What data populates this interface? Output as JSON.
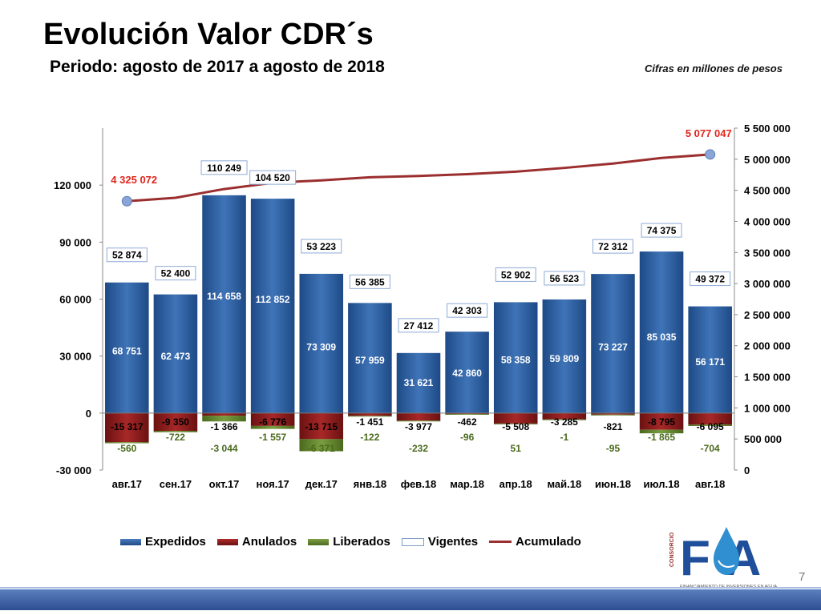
{
  "header": {
    "title": "Evolución Valor CDR´s",
    "subtitle": "Periodo:  agosto de 2017 a agosto de 2018",
    "note": "Cifras en millones de pesos"
  },
  "legend": {
    "expedidos": "Expedidos",
    "anulados": "Anulados",
    "liberados": "Liberados",
    "vigentes": "Vigentes",
    "acumulado": "Acumulado"
  },
  "page_number": "7",
  "logo": {
    "word": "FA",
    "side_text": "CONSORCIO",
    "caption": "FINANCIAMIENTO DE INVERSIONES EN AGUA"
  },
  "colors": {
    "expedidos": "#2f5e9e",
    "anulados": "#8b1c1c",
    "liberados": "#5e7f2c",
    "acumulado": "#9b2f2f",
    "accent_red": "#e0261c"
  },
  "chart_data": {
    "type": "bar",
    "categories": [
      "авг.17",
      "сен.17",
      "окт.17",
      "ноя.17",
      "дек.17",
      "янв.18",
      "фев.18",
      "мар.18",
      "апр.18",
      "май.18",
      "июн.18",
      "июл.18",
      "авг.18"
    ],
    "series": [
      {
        "name": "Expedidos",
        "values": [
          68751,
          62473,
          114658,
          112852,
          73309,
          57959,
          31621,
          42860,
          58358,
          59809,
          73227,
          85035,
          56171
        ],
        "labels": [
          "68 751",
          "62 473",
          "114 658",
          "112 852",
          "73 309",
          "57 959",
          "31 621",
          "42 860",
          "58 358",
          "59 809",
          "73 227",
          "85 035",
          "56 171"
        ]
      },
      {
        "name": "Anulados",
        "values": [
          -15317,
          -9350,
          -1366,
          -6776,
          -13715,
          -1451,
          -3977,
          -462,
          -5508,
          -3285,
          -821,
          -8795,
          -6095
        ],
        "labels": [
          "-15 317",
          "-9 350",
          "-1 366",
          "-6 776",
          "-13 715",
          "-1 451",
          "-3 977",
          "-462",
          "-5 508",
          "-3 285",
          "-821",
          "-8 795",
          "-6 095"
        ]
      },
      {
        "name": "Liberados",
        "values": [
          -560,
          -722,
          -3044,
          -1557,
          -6371,
          -122,
          -232,
          -96,
          51,
          -1,
          -95,
          -1865,
          -704
        ],
        "labels": [
          "-560",
          "-722",
          "-3 044",
          "-1 557",
          "-6 371",
          "-122",
          "-232",
          "-96",
          "51",
          "-1",
          "-95",
          "-1 865",
          "-704"
        ]
      },
      {
        "name": "Vigentes",
        "values": [
          52874,
          52400,
          110249,
          104520,
          53223,
          56385,
          27412,
          42303,
          52902,
          56523,
          72312,
          74375,
          49372
        ],
        "labels": [
          "52 874",
          "52 400",
          "110 249",
          "104 520",
          "53 223",
          "56 385",
          "27 412",
          "42 303",
          "52 902",
          "56 523",
          "72 312",
          "74 375",
          "49 372"
        ]
      },
      {
        "name": "Acumulado",
        "axis": "right",
        "values": [
          4325072,
          4380000,
          4520000,
          4620000,
          4660000,
          4710000,
          4730000,
          4760000,
          4800000,
          4860000,
          4930000,
          5020000,
          5077047
        ]
      }
    ],
    "acumulado_labels": {
      "first": "4 325 072",
      "last": "5 077 047"
    },
    "ylim": [
      -30000,
      150000
    ],
    "yticks": [
      "-30 000",
      "0",
      "30 000",
      "60 000",
      "90 000",
      "120 000"
    ],
    "y2lim": [
      0,
      5500000
    ],
    "y2ticks": [
      "0",
      "500 000",
      "1 000 000",
      "1 500 000",
      "2 000 000",
      "2 500 000",
      "3 000 000",
      "3 500 000",
      "4 000 000",
      "4 500 000",
      "5 000 000",
      "5 500 000"
    ],
    "legend_position": "bottom"
  }
}
